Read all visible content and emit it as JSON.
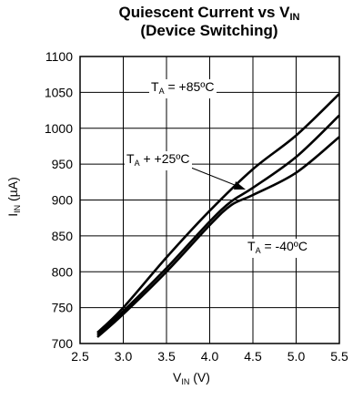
{
  "chart_data": {
    "type": "line",
    "title_line1_main": "Quiescent Current vs V",
    "title_line1_sub": "IN",
    "title_line2": "(Device Switching)",
    "xlabel_main": "V",
    "xlabel_sub": "IN",
    "xlabel_unit": " (V)",
    "ylabel_main": "I",
    "ylabel_sub": "IN",
    "ylabel_unit": " (µA)",
    "xlim": [
      2.5,
      5.5
    ],
    "ylim": [
      700,
      1100
    ],
    "xticks": [
      "2.5",
      "3.0",
      "3.5",
      "4.0",
      "4.5",
      "5.0",
      "5.5"
    ],
    "yticks": [
      "700",
      "750",
      "800",
      "850",
      "900",
      "950",
      "1000",
      "1050",
      "1100"
    ],
    "grid": true,
    "series": [
      {
        "name": "T_A = +85ºC",
        "x": [
          2.7,
          3.0,
          3.5,
          4.0,
          4.5,
          5.0,
          5.5
        ],
        "y": [
          715,
          750,
          820,
          885,
          943,
          990,
          1048
        ]
      },
      {
        "name": "T_A + +25ºC",
        "x": [
          2.7,
          3.0,
          3.5,
          4.0,
          4.25,
          4.5,
          5.0,
          5.5
        ],
        "y": [
          712,
          745,
          805,
          870,
          898,
          917,
          960,
          1018
        ]
      },
      {
        "name": "T_A = -40ºC",
        "x": [
          2.7,
          3.0,
          3.5,
          4.0,
          4.25,
          4.5,
          5.0,
          5.5
        ],
        "y": [
          709,
          741,
          800,
          865,
          893,
          907,
          938,
          988
        ]
      }
    ],
    "annotations": [
      {
        "main": "T",
        "sub": "A",
        "rest": " = +85ºC"
      },
      {
        "main": "T",
        "sub": "A",
        "rest": " + +25ºC"
      },
      {
        "main": "T",
        "sub": "A",
        "rest": " = -40ºC"
      }
    ]
  }
}
